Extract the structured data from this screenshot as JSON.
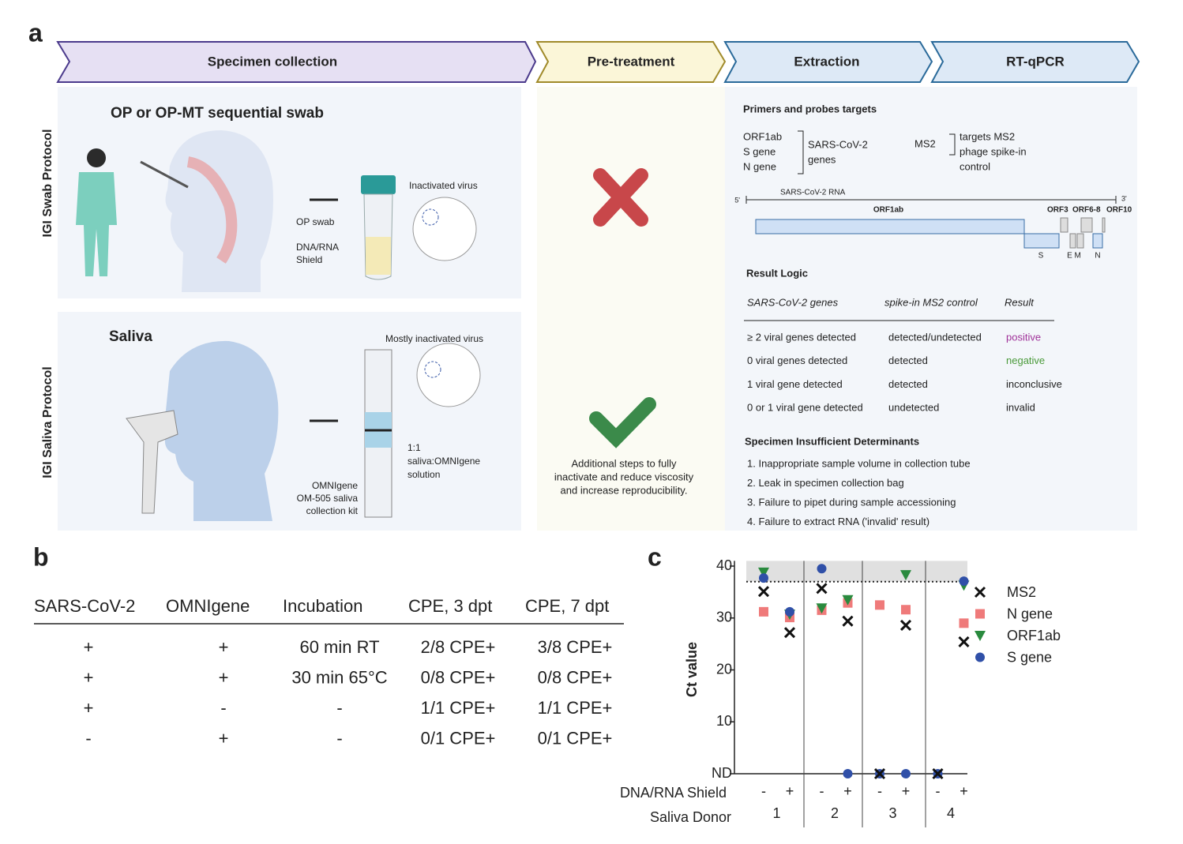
{
  "panel_labels": [
    "a",
    "b",
    "c"
  ],
  "workflow": {
    "steps": [
      "Specimen collection",
      "Pre-treatment",
      "Extraction",
      "RT-qPCR"
    ]
  },
  "swab": {
    "protocol": "IGI Swab Protocol",
    "title": "OP or OP-MT sequential swab",
    "inactivated": "Inactivated virus",
    "op_swab": "OP swab",
    "shield": [
      "DNA/RNA",
      "Shield"
    ]
  },
  "saliva": {
    "protocol": "IGI Saliva Protocol",
    "title": "Saliva",
    "inactivated": "Mostly inactivated virus",
    "ratio": [
      "1:1",
      "saliva:OMNIgene",
      "solution"
    ],
    "kit": [
      "OMNIgene",
      "OM-505 saliva",
      "collection kit"
    ]
  },
  "pretreatment": {
    "note": [
      "Additional steps to fully",
      "inactivate and reduce viscosity",
      "and increase reproducibility."
    ]
  },
  "extraction": {
    "primers_title": "Primers and probes targets",
    "genes": [
      "ORF1ab",
      "S gene",
      "N gene"
    ],
    "genes_label": [
      "SARS-CoV-2",
      "genes"
    ],
    "ms2": "MS2",
    "ms2_label": [
      "targets MS2",
      "phage spike-in",
      "control"
    ],
    "genome": {
      "five": "5'",
      "three": "3'",
      "rna": "SARS-CoV-2 RNA",
      "orf1ab": "ORF1ab",
      "orf3": "ORF3",
      "orf68": "ORF6-8",
      "orf10": "ORF10",
      "s": "S",
      "em": "E M",
      "n": "N"
    },
    "logic_title": "Result Logic",
    "logic_header": [
      "SARS-CoV-2 genes",
      "spike-in MS2 control",
      "Result"
    ],
    "logic_rows": [
      [
        "≥ 2 viral genes detected",
        "detected/undetected",
        "positive"
      ],
      [
        "0 viral genes detected",
        "detected",
        "negative"
      ],
      [
        "1 viral gene detected",
        "detected",
        "inconclusive"
      ],
      [
        "0 or 1 viral gene detected",
        "undetected",
        "invalid"
      ]
    ],
    "insufficient_title": "Specimen Insufficient Determinants",
    "insufficient": [
      "1. Inappropriate sample volume in collection tube",
      "2. Leak in specimen collection bag",
      "3. Failure to pipet during sample accessioning",
      "4. Failure to extract RNA ('invalid' result)"
    ]
  },
  "table_b": {
    "header": [
      "SARS-CoV-2",
      "OMNIgene",
      "Incubation",
      "CPE, 3 dpt",
      "CPE, 7 dpt"
    ],
    "rows": [
      [
        "+",
        "+",
        "60 min RT",
        "2/8 CPE+",
        "3/8 CPE+"
      ],
      [
        "+",
        "+",
        "30 min 65°C",
        "0/8 CPE+",
        "0/8 CPE+"
      ],
      [
        "+",
        "-",
        "-",
        "1/1 CPE+",
        "1/1 CPE+"
      ],
      [
        "-",
        "+",
        "-",
        "0/1 CPE+",
        "0/1 CPE+"
      ]
    ]
  },
  "chart_data": {
    "type": "scatter",
    "y_label": "Ct value",
    "row_label": "DNA/RNA Shield",
    "group_label": "Saliva Donor",
    "groups": [
      "1",
      "2",
      "3",
      "4"
    ],
    "categories": [
      "-",
      "+",
      "-",
      "+",
      "-",
      "+",
      "-",
      "+"
    ],
    "ylim": [
      0,
      41
    ],
    "yticks": [
      {
        "value": 0,
        "label": "ND"
      },
      10,
      20,
      30,
      40
    ],
    "threshold": 37,
    "series": [
      {
        "name": "MS2",
        "color": "#111111",
        "marker": "cross",
        "values": [
          35.1,
          27.2,
          35.7,
          29.4,
          0,
          28.6,
          0,
          25.4
        ]
      },
      {
        "name": "N gene",
        "color": "#ef7a7a",
        "marker": "square",
        "values": [
          31.2,
          30.1,
          31.5,
          32.9,
          32.5,
          31.6,
          null,
          29.0
        ]
      },
      {
        "name": "ORF1ab",
        "color": "#2a8a3e",
        "marker": "triangle",
        "values": [
          38.8,
          30.7,
          31.9,
          33.5,
          null,
          38.3,
          null,
          36.3
        ]
      },
      {
        "name": "S gene",
        "color": "#3050a8",
        "marker": "circle",
        "values": [
          37.7,
          31.2,
          39.5,
          0,
          0,
          0,
          0,
          37.1
        ]
      }
    ]
  }
}
